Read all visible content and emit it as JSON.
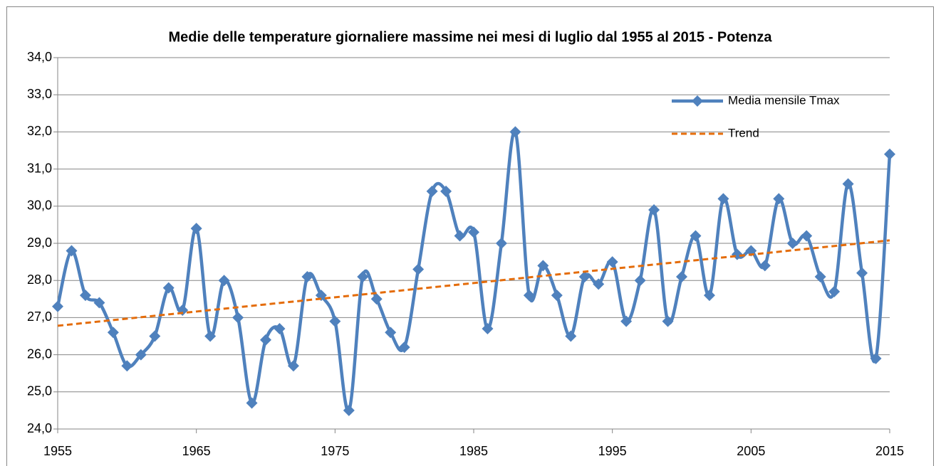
{
  "chart_data": {
    "type": "line",
    "title": "Medie delle temperature giornaliere massime nei mesi di luglio dal 1955  al 2015  - Potenza",
    "x": [
      1955,
      1956,
      1957,
      1958,
      1959,
      1960,
      1961,
      1962,
      1963,
      1964,
      1965,
      1966,
      1967,
      1968,
      1969,
      1970,
      1971,
      1972,
      1973,
      1974,
      1975,
      1976,
      1977,
      1978,
      1979,
      1980,
      1981,
      1982,
      1983,
      1984,
      1985,
      1986,
      1987,
      1988,
      1989,
      1990,
      1991,
      1992,
      1993,
      1994,
      1995,
      1996,
      1997,
      1998,
      1999,
      2000,
      2001,
      2002,
      2003,
      2004,
      2005,
      2006,
      2007,
      2008,
      2009,
      2010,
      2011,
      2012,
      2013,
      2014,
      2015
    ],
    "series": [
      {
        "name": "Media mensile Tmax",
        "color": "#4f81bd",
        "values": [
          27.3,
          28.8,
          27.6,
          27.4,
          26.6,
          25.7,
          26.0,
          26.5,
          27.8,
          27.2,
          29.4,
          26.5,
          28.0,
          27.0,
          24.7,
          26.4,
          26.7,
          25.7,
          28.1,
          27.6,
          26.9,
          24.5,
          28.1,
          27.5,
          26.6,
          26.2,
          28.3,
          30.4,
          30.4,
          29.2,
          29.3,
          26.7,
          29.0,
          32.0,
          27.6,
          28.4,
          27.6,
          26.5,
          28.1,
          27.9,
          28.5,
          26.9,
          28.0,
          29.9,
          26.9,
          28.1,
          29.2,
          27.6,
          30.2,
          28.7,
          28.8,
          28.4,
          30.2,
          29.0,
          29.2,
          28.1,
          27.7,
          30.6,
          28.2,
          25.9,
          31.4
        ]
      },
      {
        "name": "Trend",
        "color": "#e46c0a",
        "dashed": true,
        "x": [
          1955,
          2015
        ],
        "values": [
          26.78,
          29.08
        ]
      }
    ],
    "xlim": [
      1955,
      2015
    ],
    "xticks": [
      1955,
      1965,
      1975,
      1985,
      1995,
      2005,
      2015
    ],
    "ylim": [
      24,
      34
    ],
    "yticks": [
      {
        "value": 24,
        "label": "24,0"
      },
      {
        "value": 25,
        "label": "25,0"
      },
      {
        "value": 26,
        "label": "26,0"
      },
      {
        "value": 27,
        "label": "27,0"
      },
      {
        "value": 28,
        "label": "28,0"
      },
      {
        "value": 29,
        "label": "29,0"
      },
      {
        "value": 30,
        "label": "30,0"
      },
      {
        "value": 31,
        "label": "31,0"
      },
      {
        "value": 32,
        "label": "32,0"
      },
      {
        "value": 33,
        "label": "33,0"
      },
      {
        "value": 34,
        "label": "34,0"
      }
    ],
    "grid": true,
    "legend": "top-right"
  }
}
